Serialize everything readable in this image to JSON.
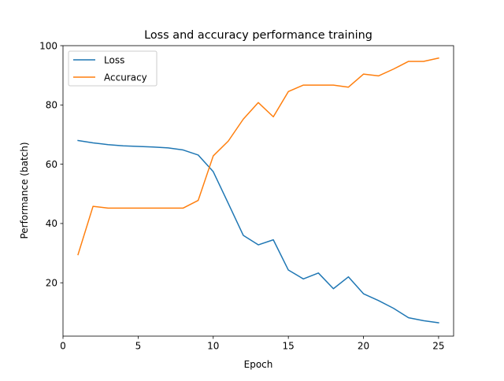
{
  "chart_data": {
    "type": "line",
    "title": "Loss and accuracy performance training",
    "xlabel": "Epoch",
    "ylabel": "Performance (batch)",
    "xlim": [
      0,
      26
    ],
    "ylim": [
      2,
      100
    ],
    "xticks": [
      0,
      5,
      10,
      15,
      20,
      25
    ],
    "yticks": [
      20,
      40,
      60,
      80,
      100
    ],
    "grid": false,
    "legend_position": "upper-left",
    "x": [
      1,
      2,
      3,
      4,
      5,
      6,
      7,
      8,
      9,
      10,
      11,
      12,
      13,
      14,
      15,
      16,
      17,
      18,
      19,
      20,
      21,
      22,
      23,
      24,
      25
    ],
    "series": [
      {
        "name": "Loss",
        "color": "#1f77b4",
        "values": [
          68.0,
          67.2,
          66.6,
          66.2,
          66.0,
          65.8,
          65.5,
          64.8,
          63.1,
          57.5,
          46.8,
          36.0,
          32.8,
          34.5,
          24.3,
          21.3,
          23.3,
          18.0,
          22.0,
          16.3,
          14.0,
          11.4,
          8.2,
          7.2,
          6.5
        ]
      },
      {
        "name": "Accuracy",
        "color": "#ff7f0e",
        "values": [
          29.5,
          45.8,
          45.2,
          45.2,
          45.2,
          45.2,
          45.2,
          45.2,
          47.8,
          62.8,
          67.8,
          75.2,
          80.8,
          76.0,
          84.5,
          86.7,
          86.7,
          86.7,
          86.0,
          90.4,
          89.8,
          92.1,
          94.7,
          94.7,
          95.8
        ]
      }
    ]
  }
}
